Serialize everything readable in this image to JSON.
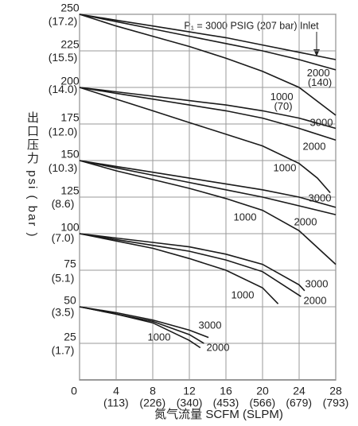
{
  "chart_data": {
    "type": "line",
    "x_label": "氮气流量 SCFM (SLPM)",
    "y_label": "出口压力 psi ( bar )",
    "annotation": "P₁ = 3000 PSIG (207 bar) Inlet",
    "color": "#1a1a1a",
    "grid": true,
    "xlim": [
      0,
      28
    ],
    "xticks": [
      0,
      4,
      8,
      12,
      16,
      20,
      24,
      28
    ],
    "x2lim": [
      0,
      793
    ],
    "x2ticks": [
      {
        "value": 113,
        "label": "(113)"
      },
      {
        "value": 226,
        "label": "(226)"
      },
      {
        "value": 340,
        "label": "(340)"
      },
      {
        "value": 453,
        "label": "(453)"
      },
      {
        "value": 566,
        "label": "(566)"
      },
      {
        "value": 679,
        "label": "(679)"
      },
      {
        "value": 793,
        "label": "(793)"
      }
    ],
    "ylim": [
      0,
      250
    ],
    "yticks": [
      25,
      50,
      75,
      100,
      125,
      150,
      175,
      200,
      225,
      250
    ],
    "y2lim": [
      0,
      17.237
    ],
    "y2ticks": [
      {
        "value": 1.7,
        "label": "(1.7)"
      },
      {
        "value": 3.5,
        "label": "(3.5)"
      },
      {
        "value": 5.1,
        "label": "(5.1)"
      },
      {
        "value": 7.0,
        "label": "(7.0)"
      },
      {
        "value": 8.6,
        "label": "(8.6)"
      },
      {
        "value": 10.3,
        "label": "(10.3)"
      },
      {
        "value": 12.0,
        "label": "(12.0)"
      },
      {
        "value": 14.0,
        "label": "(14.0)"
      },
      {
        "value": 15.5,
        "label": "(15.5)"
      },
      {
        "value": 17.2,
        "label": "(17.2)"
      }
    ],
    "series": [
      {
        "x": [
          0,
          4,
          8,
          12,
          16,
          20,
          24,
          28
        ],
        "values": [
          250,
          246,
          242,
          238,
          234,
          229,
          224,
          219
        ]
      },
      {
        "name": "2000 (140)",
        "x": [
          0,
          4,
          8,
          12,
          16,
          20,
          24,
          28
        ],
        "values": [
          250,
          245,
          240,
          235,
          230,
          225,
          219,
          212
        ]
      },
      {
        "name": "1000 (70)",
        "x": [
          0,
          4,
          8,
          12,
          16,
          20,
          24,
          28
        ],
        "values": [
          250,
          242,
          235,
          228,
          220,
          211,
          200,
          181
        ]
      },
      {
        "name": "3000",
        "x": [
          0,
          4,
          8,
          12,
          16,
          20,
          24,
          28
        ],
        "values": [
          200,
          197,
          194,
          191,
          188,
          184,
          179,
          172
        ]
      },
      {
        "name": "2000",
        "x": [
          0,
          4,
          8,
          12,
          16,
          20,
          24,
          28
        ],
        "values": [
          200,
          196,
          192,
          188,
          184,
          179,
          172,
          164
        ]
      },
      {
        "name": "1000",
        "x": [
          0,
          4,
          8,
          12,
          16,
          20,
          24,
          26,
          27.4
        ],
        "values": [
          200,
          192,
          184,
          176,
          168,
          160,
          148,
          138,
          128
        ]
      },
      {
        "name": "3000",
        "x": [
          0,
          4,
          8,
          12,
          16,
          20,
          24,
          28
        ],
        "values": [
          150,
          146,
          142,
          138,
          134,
          130,
          125,
          118
        ]
      },
      {
        "name": "2000",
        "x": [
          0,
          4,
          8,
          12,
          16,
          20,
          24,
          28
        ],
        "values": [
          150,
          145,
          140,
          135,
          130,
          125,
          119,
          113
        ]
      },
      {
        "name": "1000",
        "x": [
          0,
          4,
          8,
          12,
          16,
          20,
          24,
          28
        ],
        "values": [
          150,
          143,
          137,
          131,
          124,
          116,
          102,
          79
        ]
      },
      {
        "name": "3000",
        "x": [
          0,
          4,
          8,
          12,
          16,
          20,
          24,
          24.6
        ],
        "values": [
          100,
          97,
          94,
          91,
          86,
          79,
          65,
          61
        ]
      },
      {
        "name": "2000",
        "x": [
          0,
          4,
          8,
          12,
          16,
          20,
          24.2
        ],
        "values": [
          100,
          96,
          92,
          88,
          82,
          74,
          57
        ]
      },
      {
        "name": "1000",
        "x": [
          0,
          4,
          8,
          12,
          16,
          20,
          21.7
        ],
        "values": [
          100,
          95,
          90,
          83,
          75,
          63,
          52
        ]
      },
      {
        "name": "3000",
        "x": [
          0,
          4,
          8,
          12,
          14.1
        ],
        "values": [
          50,
          46,
          41,
          34,
          29
        ]
      },
      {
        "name": "2000",
        "x": [
          0,
          4,
          8,
          12,
          13.2
        ],
        "values": [
          50,
          45,
          39,
          27,
          22
        ]
      },
      {
        "name": "1000",
        "x": [
          0,
          4,
          8,
          12,
          13.6
        ],
        "values": [
          50,
          45,
          40,
          31,
          25
        ]
      }
    ]
  }
}
